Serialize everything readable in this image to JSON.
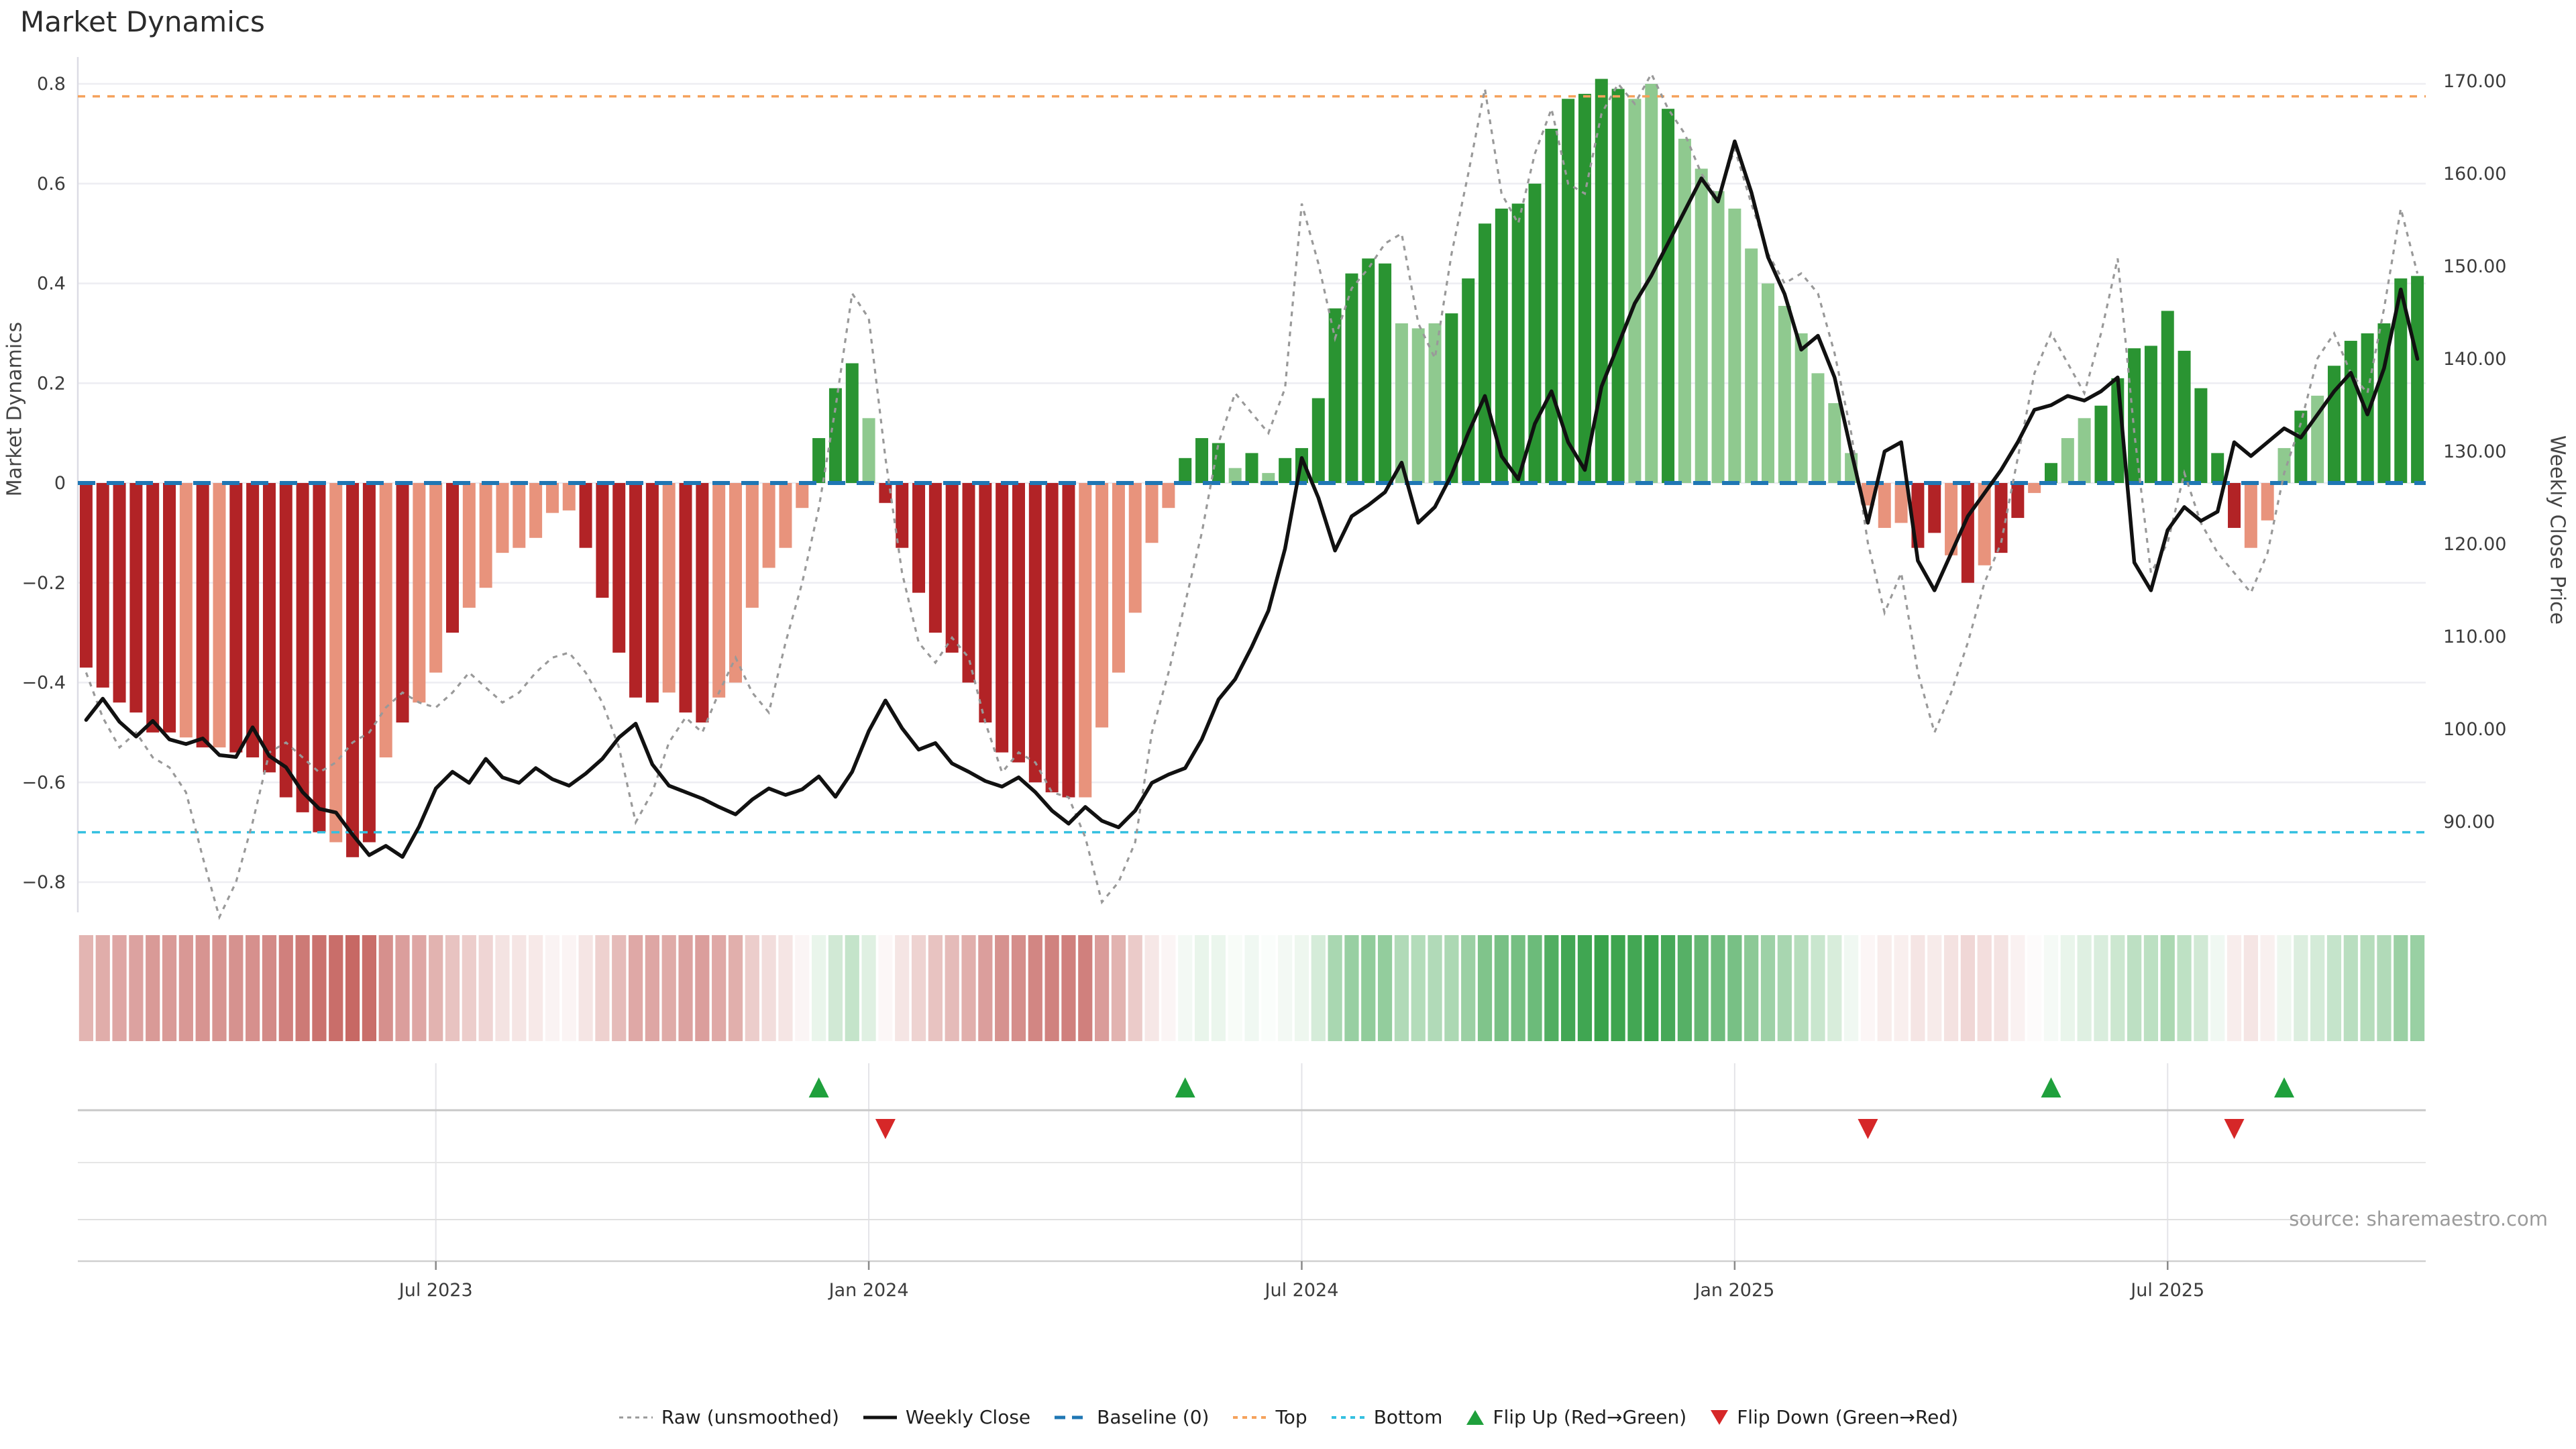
{
  "title": "Market Dynamics",
  "source": "source: sharemaestro.com",
  "axes": {
    "left_label": "Market Dynamics",
    "right_label": "Weekly Close Price",
    "left_ticks": [
      {
        "label": "0.8",
        "value": 0.8
      },
      {
        "label": "0.6",
        "value": 0.6
      },
      {
        "label": "0.4",
        "value": 0.4
      },
      {
        "label": "0.2",
        "value": 0.2
      },
      {
        "label": "0",
        "value": 0.0
      },
      {
        "label": "−0.2",
        "value": -0.2
      },
      {
        "label": "−0.4",
        "value": -0.4
      },
      {
        "label": "−0.6",
        "value": -0.6
      },
      {
        "label": "−0.8",
        "value": -0.8
      }
    ],
    "right_ticks": [
      {
        "label": "170.00",
        "value": 170
      },
      {
        "label": "160.00",
        "value": 160
      },
      {
        "label": "150.00",
        "value": 150
      },
      {
        "label": "140.00",
        "value": 140
      },
      {
        "label": "130.00",
        "value": 130
      },
      {
        "label": "120.00",
        "value": 120
      },
      {
        "label": "110.00",
        "value": 110
      },
      {
        "label": "100.00",
        "value": 100
      },
      {
        "label": "90.00",
        "value": 90
      }
    ],
    "x_ticks": [
      {
        "label": "Jul 2023",
        "week": 21
      },
      {
        "label": "Jan 2024",
        "week": 47
      },
      {
        "label": "Jul 2024",
        "week": 73
      },
      {
        "label": "Jan 2025",
        "week": 99
      },
      {
        "label": "Jul 2025",
        "week": 125
      }
    ]
  },
  "legend": {
    "items": [
      {
        "label": "Raw (unsmoothed)",
        "swatch": "dashed-gray-line"
      },
      {
        "label": "Weekly Close",
        "swatch": "solid-black-line"
      },
      {
        "label": "Baseline (0)",
        "swatch": "dashed-blue-line"
      },
      {
        "label": "Top",
        "swatch": "dotted-orange-line"
      },
      {
        "label": "Bottom",
        "swatch": "dotted-cyan-line"
      },
      {
        "label": "Flip Up (Red→Green)",
        "swatch": "green-up-triangle"
      },
      {
        "label": "Flip Down (Green→Red)",
        "swatch": "red-down-triangle"
      }
    ]
  },
  "colors": {
    "bar_green": "#2a9432",
    "bar_green_light": "#8fc98f",
    "bar_red": "#b22326",
    "bar_red_light": "#e8937c",
    "close_line": "#111111",
    "raw_line": "#999999",
    "baseline": "#1f77b4",
    "top_line": "#f5a25c",
    "bottom_line": "#35c0e0",
    "flip_up": "#1fa03c",
    "flip_down": "#d62728",
    "grid": "#ededf2",
    "axis_text": "#3c3c3c"
  },
  "chart_data": {
    "type": "bar",
    "title": "Market Dynamics",
    "xlabel": "",
    "ylabel_left": "Market Dynamics",
    "ylabel_right": "Weekly Close Price",
    "x_range_weekly": "Feb 2023 – Nov 2025 (141 weekly bars)",
    "ylim_left": [
      -0.86,
      0.855
    ],
    "ylim_right": [
      86.0,
      170.0
    ],
    "baseline": 0,
    "top_level": 0.775,
    "bottom_level": -0.7,
    "grid": true,
    "legend_position": "bottom-center",
    "series_info": [
      {
        "name": "Market Dynamics (smoothed)",
        "type": "bar",
        "axis": "left",
        "note": "dark/light red negative, dark/light green positive"
      },
      {
        "name": "Raw (unsmoothed)",
        "type": "line",
        "style": "dashed gray",
        "axis": "left"
      },
      {
        "name": "Weekly Close",
        "type": "line",
        "style": "solid black",
        "axis": "right"
      },
      {
        "name": "Regime heatmap",
        "type": "heatmap",
        "note": "one cell per week, red-white-green by dynamics value"
      },
      {
        "name": "Flip markers",
        "type": "scatter",
        "note": "green up / red down triangles at regime changes"
      }
    ],
    "dynamics": [
      -0.37,
      -0.41,
      -0.44,
      -0.46,
      -0.5,
      -0.5,
      -0.51,
      -0.53,
      -0.53,
      -0.54,
      -0.55,
      -0.58,
      -0.63,
      -0.66,
      -0.7,
      -0.72,
      -0.75,
      -0.72,
      -0.55,
      -0.48,
      -0.44,
      -0.38,
      -0.3,
      -0.25,
      -0.21,
      -0.14,
      -0.13,
      -0.11,
      -0.06,
      -0.055,
      -0.13,
      -0.23,
      -0.34,
      -0.43,
      -0.44,
      -0.42,
      -0.46,
      -0.48,
      -0.43,
      -0.4,
      -0.25,
      -0.17,
      -0.13,
      -0.05,
      0.09,
      0.19,
      0.24,
      0.13,
      -0.04,
      -0.13,
      -0.22,
      -0.3,
      -0.34,
      -0.4,
      -0.48,
      -0.54,
      -0.56,
      -0.6,
      -0.62,
      -0.63,
      -0.63,
      -0.49,
      -0.38,
      -0.26,
      -0.12,
      -0.05,
      0.05,
      0.09,
      0.08,
      0.03,
      0.06,
      0.02,
      0.05,
      0.07,
      0.17,
      0.35,
      0.42,
      0.45,
      0.44,
      0.32,
      0.31,
      0.32,
      0.34,
      0.41,
      0.52,
      0.55,
      0.56,
      0.6,
      0.71,
      0.77,
      0.78,
      0.81,
      0.79,
      0.77,
      0.8,
      0.75,
      0.69,
      0.63,
      0.585,
      0.55,
      0.47,
      0.4,
      0.355,
      0.3,
      0.22,
      0.16,
      0.06,
      -0.045,
      -0.09,
      -0.08,
      -0.13,
      -0.1,
      -0.145,
      -0.2,
      -0.165,
      -0.14,
      -0.07,
      -0.02,
      0.04,
      0.09,
      0.13,
      0.155,
      0.21,
      0.27,
      0.275,
      0.345,
      0.265,
      0.19,
      0.06,
      -0.09,
      -0.13,
      -0.075,
      0.07,
      0.145,
      0.175,
      0.235,
      0.285,
      0.3,
      0.32,
      0.41,
      0.415
    ],
    "shade": "ddddddldlddddddlddldlldllllllldddddlddlllllldddlddddddddddddlllllldddldldddddddllldddddddddddlldllllllllllllllddldlddldlldddddddddllldldddddddddd",
    "close": [
      101,
      103.3,
      100.8,
      99.2,
      100.9,
      98.9,
      98.4,
      99,
      97.2,
      97,
      100.2,
      97.1,
      95.9,
      93.2,
      91.4,
      91,
      88.6,
      86.4,
      87.4,
      86.2,
      89.5,
      93.6,
      95.4,
      94.2,
      96.8,
      94.8,
      94.2,
      95.8,
      94.6,
      93.9,
      95.2,
      96.8,
      99.1,
      100.6,
      96.2,
      93.9,
      93.2,
      92.5,
      91.6,
      90.8,
      92.4,
      93.6,
      92.9,
      93.5,
      94.9,
      92.7,
      95.4,
      99.8,
      103.1,
      100.1,
      97.8,
      98.5,
      96.3,
      95.4,
      94.4,
      93.8,
      94.8,
      93.2,
      91.2,
      89.8,
      91.6,
      90.1,
      89.4,
      91.2,
      94.2,
      95.1,
      95.8,
      98.9,
      103.2,
      105.4,
      108.9,
      112.8,
      119.5,
      129.3,
      125,
      119.3,
      123,
      124.2,
      125.6,
      128.8,
      122.3,
      124,
      127.5,
      132,
      136,
      129.5,
      127,
      133,
      136.5,
      131,
      128,
      137,
      141.5,
      146,
      149,
      152.5,
      156,
      159.5,
      157,
      163.5,
      158,
      151,
      147,
      141,
      142.5,
      138,
      130,
      122.3,
      130,
      131,
      118.2,
      115,
      119,
      123,
      125.5,
      128,
      131,
      134.5,
      135,
      136,
      135.5,
      136.5,
      138,
      118,
      115,
      121.5,
      124,
      122.5,
      123.5,
      131,
      129.5,
      131,
      132.5,
      131.5,
      134,
      136.5,
      138.5,
      134,
      139,
      147.5,
      140
    ],
    "raw": [
      -0.38,
      -0.47,
      -0.53,
      -0.5,
      -0.55,
      -0.57,
      -0.62,
      -0.75,
      -0.87,
      -0.8,
      -0.68,
      -0.54,
      -0.52,
      -0.55,
      -0.58,
      -0.56,
      -0.52,
      -0.5,
      -0.45,
      -0.42,
      -0.44,
      -0.45,
      -0.42,
      -0.38,
      -0.41,
      -0.44,
      -0.42,
      -0.38,
      -0.35,
      -0.34,
      -0.38,
      -0.44,
      -0.53,
      -0.68,
      -0.62,
      -0.52,
      -0.47,
      -0.5,
      -0.42,
      -0.35,
      -0.42,
      -0.46,
      -0.32,
      -0.2,
      -0.05,
      0.15,
      0.38,
      0.33,
      0.05,
      -0.18,
      -0.32,
      -0.36,
      -0.31,
      -0.35,
      -0.48,
      -0.58,
      -0.54,
      -0.56,
      -0.62,
      -0.63,
      -0.71,
      -0.84,
      -0.8,
      -0.72,
      -0.5,
      -0.38,
      -0.24,
      -0.1,
      0.08,
      0.18,
      0.14,
      0.1,
      0.19,
      0.56,
      0.44,
      0.29,
      0.39,
      0.43,
      0.48,
      0.5,
      0.32,
      0.25,
      0.46,
      0.62,
      0.79,
      0.58,
      0.52,
      0.66,
      0.75,
      0.6,
      0.58,
      0.74,
      0.8,
      0.76,
      0.82,
      0.75,
      0.7,
      0.62,
      0.57,
      0.67,
      0.56,
      0.46,
      0.4,
      0.42,
      0.38,
      0.26,
      0.1,
      -0.12,
      -0.26,
      -0.18,
      -0.38,
      -0.5,
      -0.42,
      -0.32,
      -0.2,
      -0.12,
      0.05,
      0.22,
      0.3,
      0.24,
      0.18,
      0.3,
      0.45,
      0.1,
      -0.18,
      -0.12,
      0.02,
      -0.08,
      -0.14,
      -0.18,
      -0.22,
      -0.14,
      0.02,
      0.12,
      0.25,
      0.3,
      0.22,
      0.18,
      0.35,
      0.55,
      0.42
    ],
    "flip_up_weeks": [
      44,
      66,
      118,
      132
    ],
    "flip_down_weeks": [
      48,
      107,
      129
    ]
  }
}
